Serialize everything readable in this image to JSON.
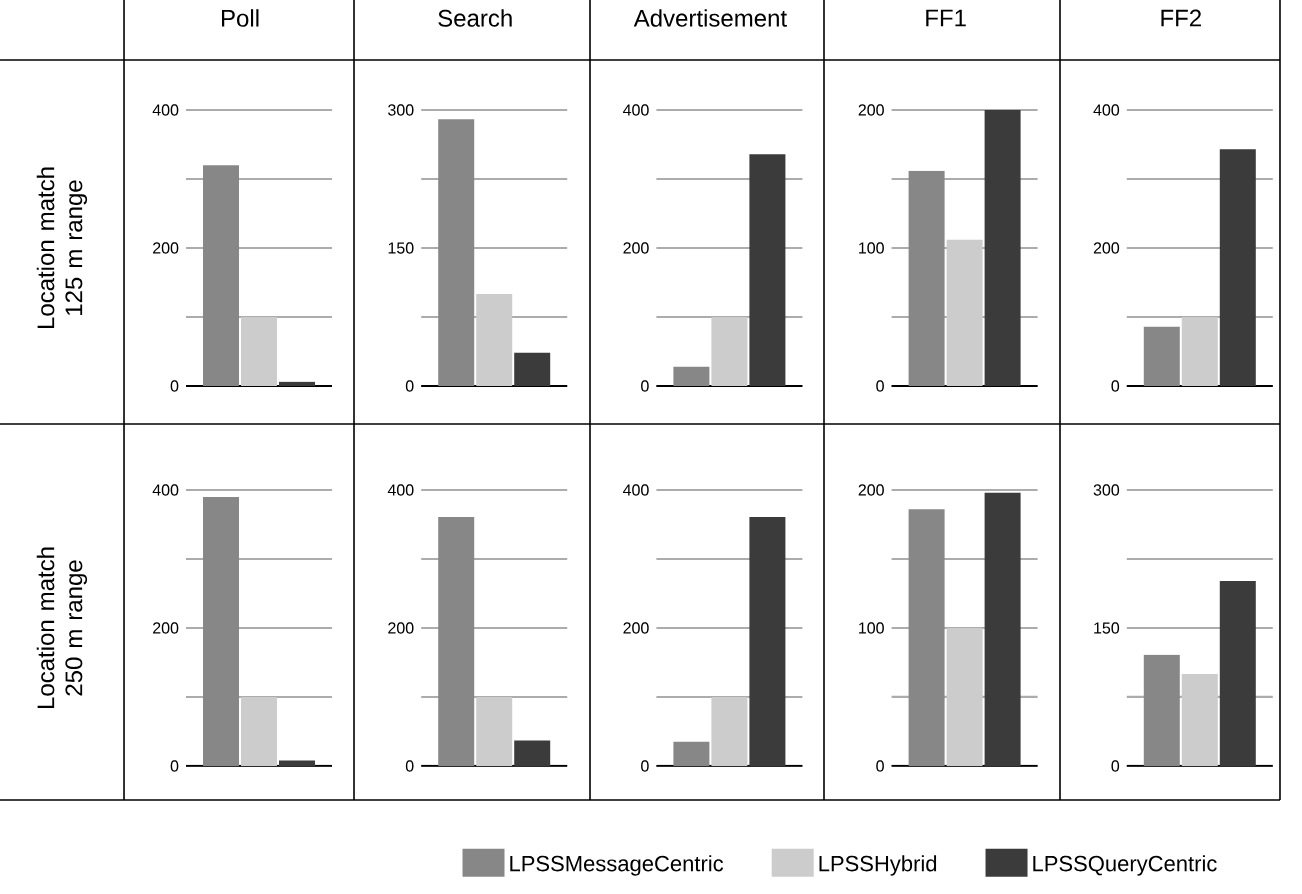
{
  "chart_data": [
    {
      "type": "bar",
      "title": "Poll",
      "ylabel": "Location match 125 m range",
      "categories": [
        null
      ],
      "legend": "bottom",
      "grid": "y",
      "ylim": [
        0,
        400
      ],
      "yticks": [
        0,
        {
          "value": 100,
          "label": null
        },
        200,
        {
          "value": 300,
          "label": null
        },
        400
      ],
      "series": [
        {
          "name": "LPSSMessageCentric",
          "color": "#878787",
          "values": [
            320
          ]
        },
        {
          "name": "LPSSHybrid",
          "color": "#cccccc",
          "values": [
            100
          ]
        },
        {
          "name": "LPSSQueryCentric",
          "color": "#3b3b3b",
          "values": [
            6
          ]
        }
      ]
    },
    {
      "type": "bar",
      "title": "Search",
      "categories": [
        null
      ],
      "grid": "y",
      "ylim": [
        0,
        300
      ],
      "yticks": [
        0,
        {
          "value": 75,
          "label": null
        },
        150,
        {
          "value": 225,
          "label": null
        },
        300
      ],
      "series": [
        {
          "color": "#878787",
          "values": [
            290
          ]
        },
        {
          "color": "#cccccc",
          "values": [
            100
          ]
        },
        {
          "color": "#3b3b3b",
          "values": [
            36
          ]
        }
      ]
    },
    {
      "type": "bar",
      "title": "Advertisement",
      "categories": [
        null
      ],
      "grid": "y",
      "ylim": [
        0,
        400
      ],
      "yticks": [
        0,
        {
          "value": 100,
          "label": null
        },
        200,
        {
          "value": 300,
          "label": null
        },
        400
      ],
      "series": [
        {
          "color": "#878787",
          "values": [
            28
          ]
        },
        {
          "color": "#cccccc",
          "values": [
            100
          ]
        },
        {
          "color": "#3b3b3b",
          "values": [
            336
          ]
        }
      ]
    },
    {
      "type": "bar",
      "title": "FF1",
      "categories": [
        null
      ],
      "grid": "y",
      "ylim": [
        0,
        200
      ],
      "yticks": [
        0,
        {
          "value": 50,
          "label": null
        },
        100,
        {
          "value": 150,
          "label": null
        },
        200
      ],
      "series": [
        {
          "color": "#878787",
          "values": [
            156
          ]
        },
        {
          "color": "#cccccc",
          "values": [
            106
          ]
        },
        {
          "color": "#3b3b3b",
          "values": [
            200
          ]
        }
      ]
    },
    {
      "type": "bar",
      "title": "FF2",
      "categories": [
        null
      ],
      "grid": "y",
      "ylim": [
        0,
        400
      ],
      "yticks": [
        0,
        {
          "value": 100,
          "label": null
        },
        200,
        {
          "value": 300,
          "label": null
        },
        400
      ],
      "series": [
        {
          "color": "#878787",
          "values": [
            86
          ]
        },
        {
          "color": "#cccccc",
          "values": [
            100
          ]
        },
        {
          "color": "#3b3b3b",
          "values": [
            343
          ]
        }
      ]
    },
    {
      "type": "bar",
      "ylabel": "Location match 250 m range",
      "categories": [
        null
      ],
      "grid": "y",
      "ylim": [
        0,
        400
      ],
      "yticks": [
        0,
        {
          "value": 100,
          "label": null
        },
        200,
        {
          "value": 300,
          "label": null
        },
        400
      ],
      "series": [
        {
          "color": "#878787",
          "values": [
            390
          ]
        },
        {
          "color": "#cccccc",
          "values": [
            100
          ]
        },
        {
          "color": "#3b3b3b",
          "values": [
            8
          ]
        }
      ]
    },
    {
      "type": "bar",
      "categories": [
        null
      ],
      "grid": "y",
      "ylim": [
        0,
        400
      ],
      "yticks": [
        0,
        {
          "value": 100,
          "label": null
        },
        200,
        {
          "value": 300,
          "label": null
        },
        400
      ],
      "series": [
        {
          "color": "#878787",
          "values": [
            361
          ]
        },
        {
          "color": "#cccccc",
          "values": [
            100
          ]
        },
        {
          "color": "#3b3b3b",
          "values": [
            37
          ]
        }
      ]
    },
    {
      "type": "bar",
      "categories": [
        null
      ],
      "grid": "y",
      "ylim": [
        0,
        400
      ],
      "yticks": [
        0,
        {
          "value": 100,
          "label": null
        },
        200,
        {
          "value": 300,
          "label": null
        },
        400
      ],
      "series": [
        {
          "color": "#878787",
          "values": [
            35
          ]
        },
        {
          "color": "#cccccc",
          "values": [
            100
          ]
        },
        {
          "color": "#3b3b3b",
          "values": [
            361
          ]
        }
      ]
    },
    {
      "type": "bar",
      "categories": [
        null
      ],
      "grid": "y",
      "ylim": [
        0,
        200
      ],
      "yticks": [
        0,
        {
          "value": 50,
          "label": null
        },
        100,
        {
          "value": 150,
          "label": null
        },
        200
      ],
      "series": [
        {
          "color": "#878787",
          "values": [
            186
          ]
        },
        {
          "color": "#cccccc",
          "values": [
            100
          ]
        },
        {
          "color": "#3b3b3b",
          "values": [
            198
          ]
        }
      ]
    },
    {
      "type": "bar",
      "categories": [
        null
      ],
      "grid": "y",
      "ylim": [
        0,
        300
      ],
      "yticks": [
        0,
        {
          "value": 75,
          "label": null
        },
        150,
        {
          "value": 225,
          "label": null
        },
        300
      ],
      "series": [
        {
          "color": "#878787",
          "values": [
            121
          ]
        },
        {
          "color": "#cccccc",
          "values": [
            100
          ]
        },
        {
          "color": "#3b3b3b",
          "values": [
            201
          ]
        }
      ]
    }
  ]
}
